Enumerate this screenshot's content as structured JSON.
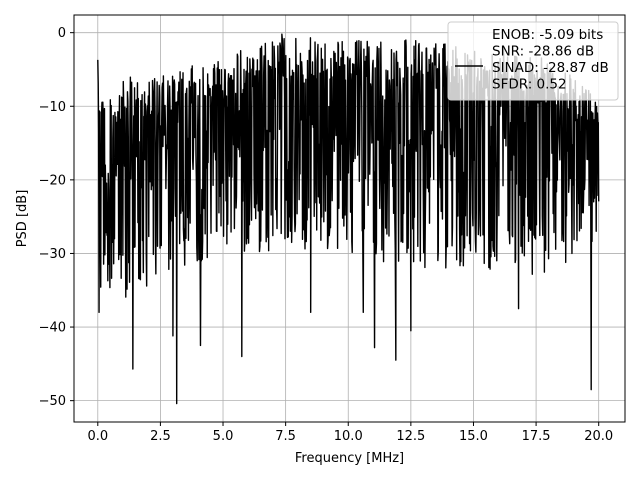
{
  "chart_data": {
    "type": "line",
    "xlabel": "Frequency [MHz]",
    "ylabel": "PSD [dB]",
    "xlim": [
      -0.95,
      21.05
    ],
    "ylim": [
      -52.9,
      2.4
    ],
    "xticks": [
      0.0,
      2.5,
      5.0,
      7.5,
      10.0,
      12.5,
      15.0,
      17.5,
      20.0
    ],
    "xtick_labels": [
      "0.0",
      "2.5",
      "5.0",
      "7.5",
      "10.0",
      "12.5",
      "15.0",
      "17.5",
      "20.0"
    ],
    "yticks": [
      0,
      -10,
      -20,
      -30,
      -40,
      -50
    ],
    "ytick_labels": [
      "0",
      "−10",
      "−20",
      "−30",
      "−40",
      "−50"
    ],
    "grid": true,
    "legend_position": "top-right",
    "line_color": "#000000",
    "legend": {
      "lines": [
        "ENOB: -5.09 bits",
        "SNR: -28.86 dB",
        "SINAD: -28.87 dB",
        "SFDR: 0.52"
      ]
    },
    "series": [
      {
        "color": "#000000",
        "x_start": 0.0,
        "x_end": 20.0,
        "num_points": 1200,
        "envelope_points": [
          {
            "x": 0.0,
            "upper": -3.7,
            "lower": -38.0
          },
          {
            "x": 0.3,
            "upper": -9.0,
            "lower": -34.0
          },
          {
            "x": 1.2,
            "upper": -6.0,
            "lower": -38.0
          },
          {
            "x": 2.5,
            "upper": -6.0,
            "lower": -33.0
          },
          {
            "x": 5.0,
            "upper": -3.0,
            "lower": -30.0
          },
          {
            "x": 7.5,
            "upper": -0.5,
            "lower": -30.0
          },
          {
            "x": 10.0,
            "upper": -1.0,
            "lower": -30.0
          },
          {
            "x": 12.5,
            "upper": -1.0,
            "lower": -32.0
          },
          {
            "x": 15.0,
            "upper": -2.0,
            "lower": -32.0
          },
          {
            "x": 17.5,
            "upper": -3.0,
            "lower": -33.0
          },
          {
            "x": 20.0,
            "upper": -8.0,
            "lower": -30.0
          }
        ],
        "notable_minima": [
          {
            "x": 1.4,
            "y": -45.7
          },
          {
            "x": 3.15,
            "y": -50.4
          },
          {
            "x": 3.0,
            "y": -41.2
          },
          {
            "x": 4.1,
            "y": -42.5
          },
          {
            "x": 5.75,
            "y": -44.0
          },
          {
            "x": 11.05,
            "y": -42.8
          },
          {
            "x": 11.9,
            "y": -44.5
          },
          {
            "x": 12.5,
            "y": -40.5
          },
          {
            "x": 19.7,
            "y": -48.5
          },
          {
            "x": 0.05,
            "y": -38.0
          },
          {
            "x": 8.5,
            "y": -38.0
          },
          {
            "x": 10.6,
            "y": -38.0
          },
          {
            "x": 16.8,
            "y": -37.5
          }
        ],
        "notable_maxima": [
          {
            "x": 0.0,
            "y": -3.7
          },
          {
            "x": 7.35,
            "y": -0.2
          },
          {
            "x": 12.3,
            "y": -1.0
          },
          {
            "x": 11.3,
            "y": -1.3
          },
          {
            "x": 16.2,
            "y": -2.0
          }
        ]
      }
    ]
  }
}
